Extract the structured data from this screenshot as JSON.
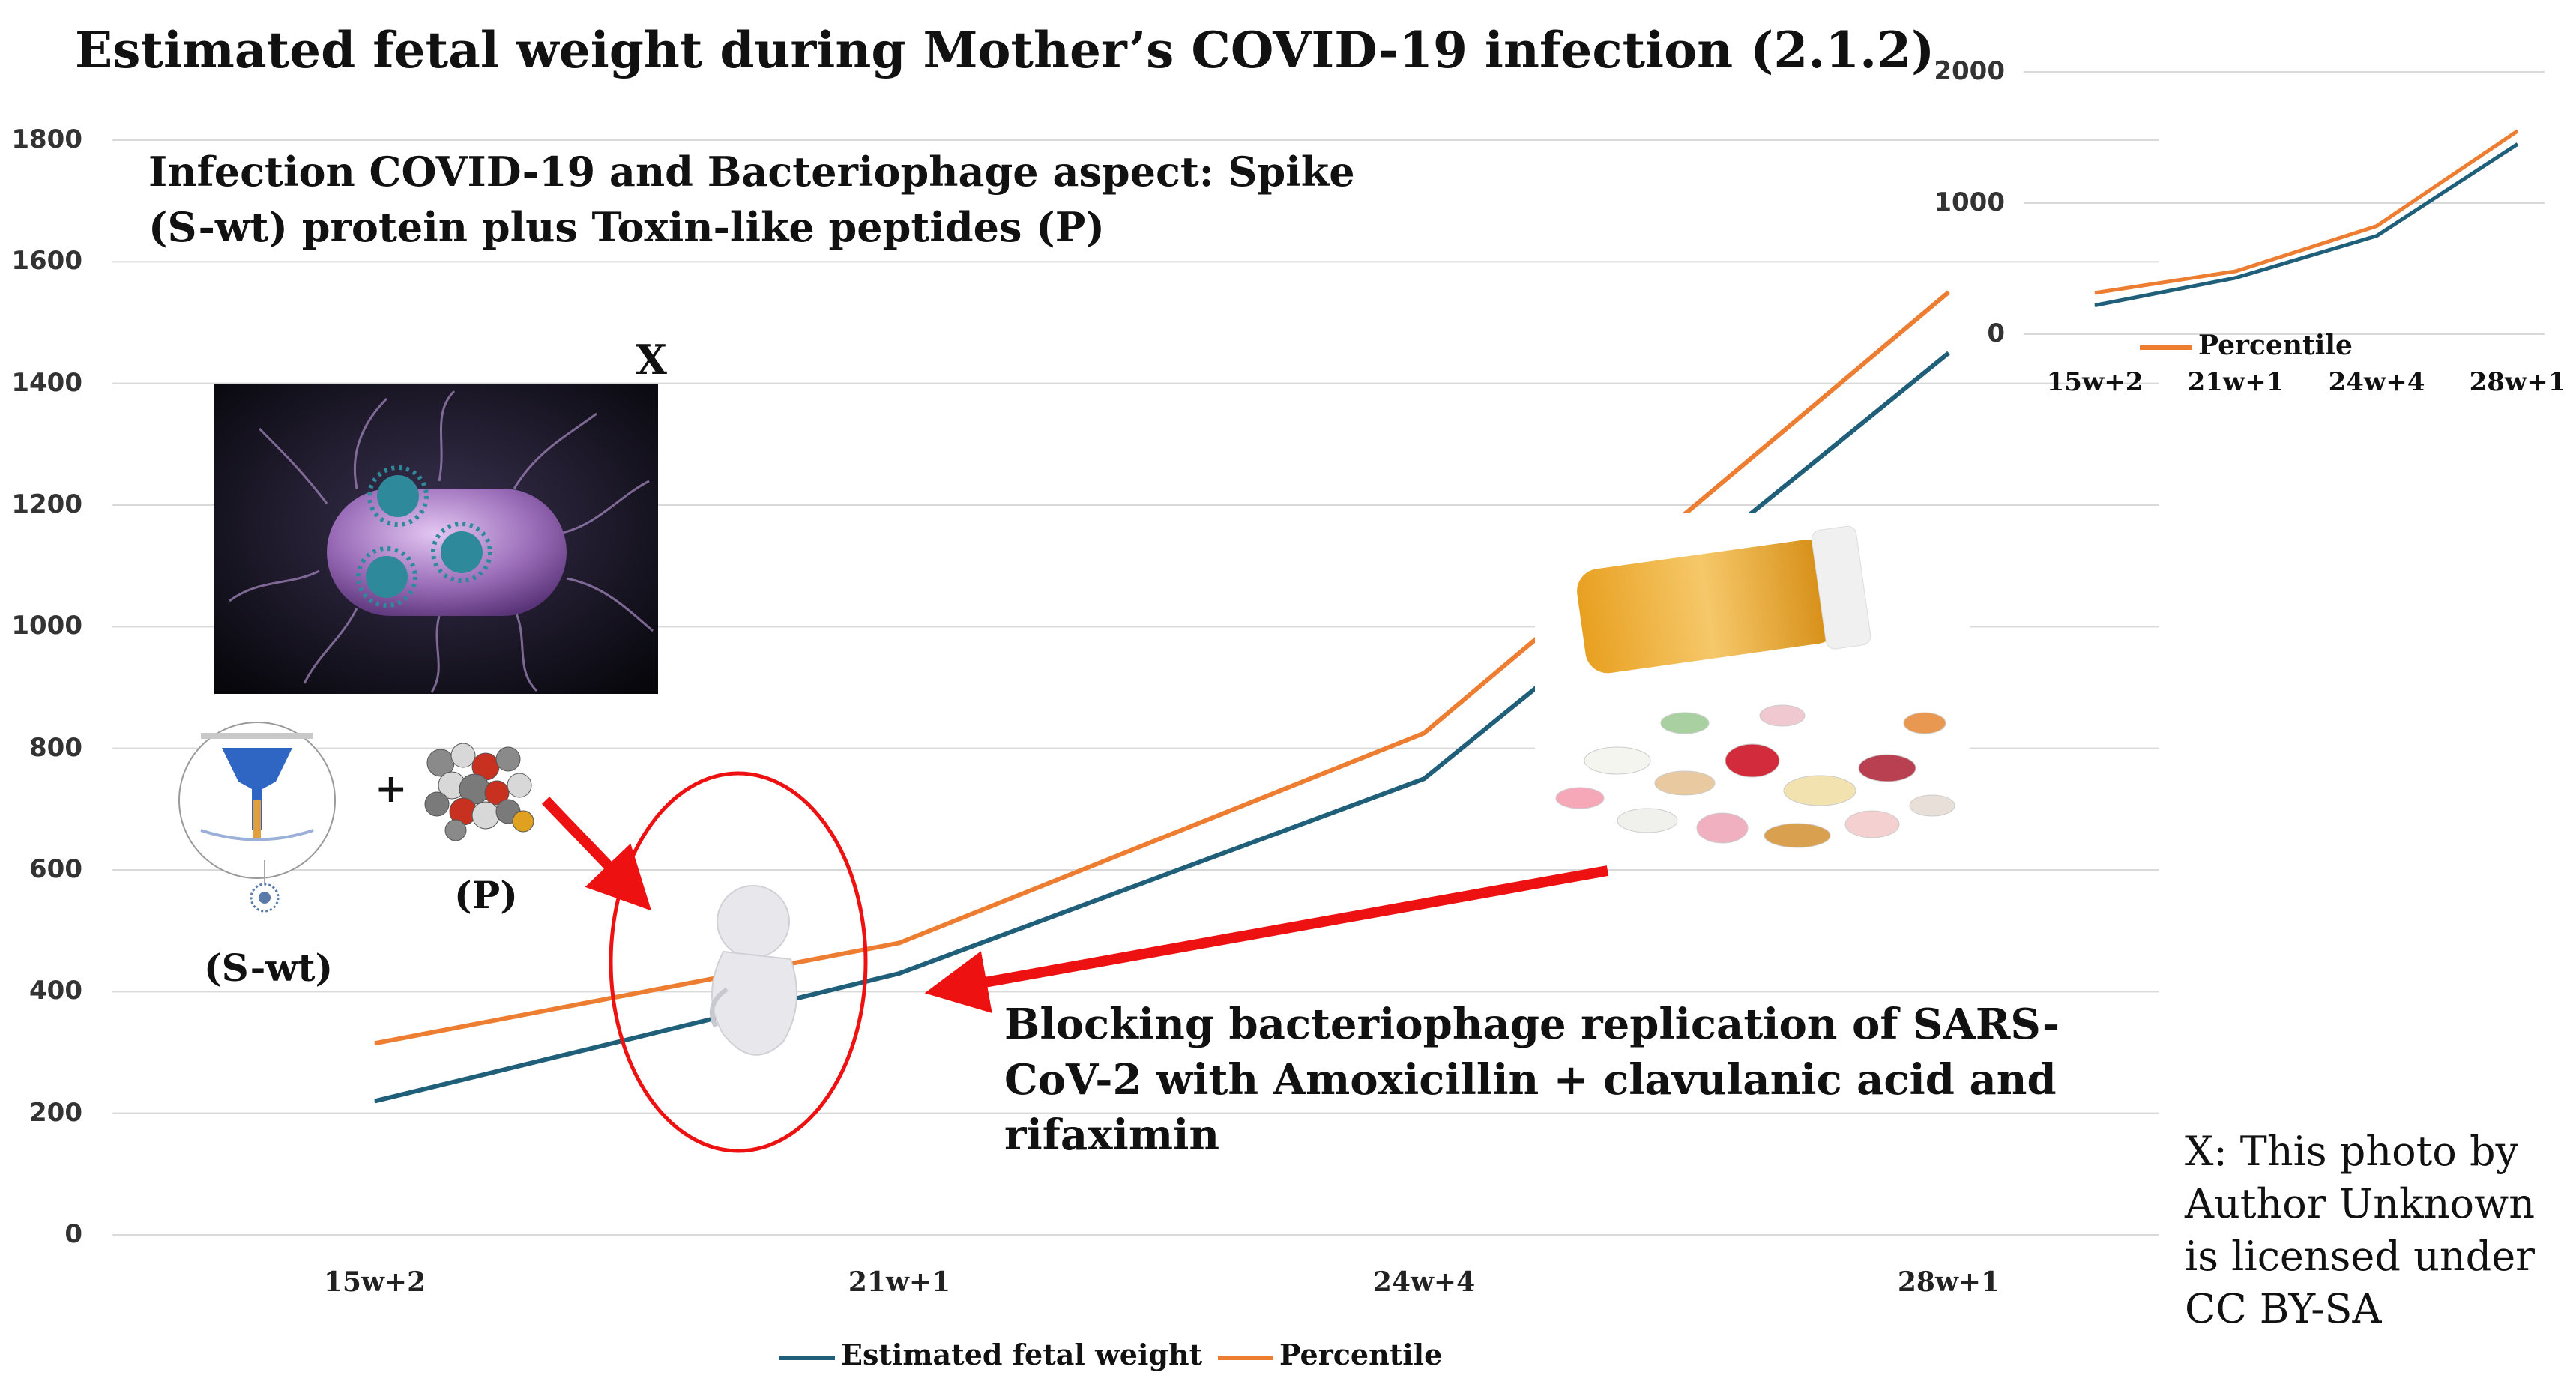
{
  "title": "Estimated fetal weight during Mother’s COVID-19 infection (2.1.2)",
  "chart_data": [
    {
      "type": "line",
      "categories": [
        "15w+2",
        "21w+1",
        "24w+4",
        "28w+1"
      ],
      "series": [
        {
          "name": "Estimated fetal weight",
          "values": [
            220,
            430,
            750,
            1450
          ]
        },
        {
          "name": "Percentile",
          "values": [
            315,
            480,
            825,
            1550
          ]
        }
      ],
      "yticks": [
        "0",
        "200",
        "400",
        "600",
        "800",
        "1000",
        "1200",
        "1400",
        "1600",
        "1800"
      ],
      "ylim": [
        0,
        1800
      ],
      "grid": true,
      "legend": "bottom",
      "colors": {
        "Estimated fetal weight": "#1f5f7a",
        "Percentile": "#ed7d31"
      }
    },
    {
      "type": "line",
      "categories": [
        "15w+2",
        "21w+1",
        "24w+4",
        "28w+1"
      ],
      "series": [
        {
          "name": "Estimated fetal weight",
          "values": [
            220,
            430,
            750,
            1450
          ]
        },
        {
          "name": "Percentile",
          "values": [
            315,
            480,
            825,
            1550
          ]
        }
      ],
      "yticks": [
        "0",
        "1000",
        "2000"
      ],
      "ylim": [
        0,
        2000
      ],
      "grid": true,
      "legend": "bottom",
      "legend_entries": [
        "Percentile"
      ],
      "colors": {
        "Estimated fetal weight": "#1f5f7a",
        "Percentile": "#ed7d31"
      }
    }
  ],
  "annotations": {
    "infection_caption": "Infection COVID-19 and  Bacteriophage aspect: Spike (S-wt) protein plus Toxin-like peptides (P)",
    "x_marker": "X",
    "plus_sign": "+",
    "p_label": "(P)",
    "swt_label": "(S-wt)",
    "blocking_caption": "Blocking bacteriophage replication of SARS-CoV-2 with Amoxicillin + clavulanic acid and rifaximin",
    "credit_note": "X: This photo by Author Unknown is licensed under CC BY-SA"
  },
  "colors": {
    "arrow": "#ee1111",
    "ellipse": "#ee1111",
    "bacterium": "#9a6cb8",
    "virus": "#2e8a9a"
  }
}
